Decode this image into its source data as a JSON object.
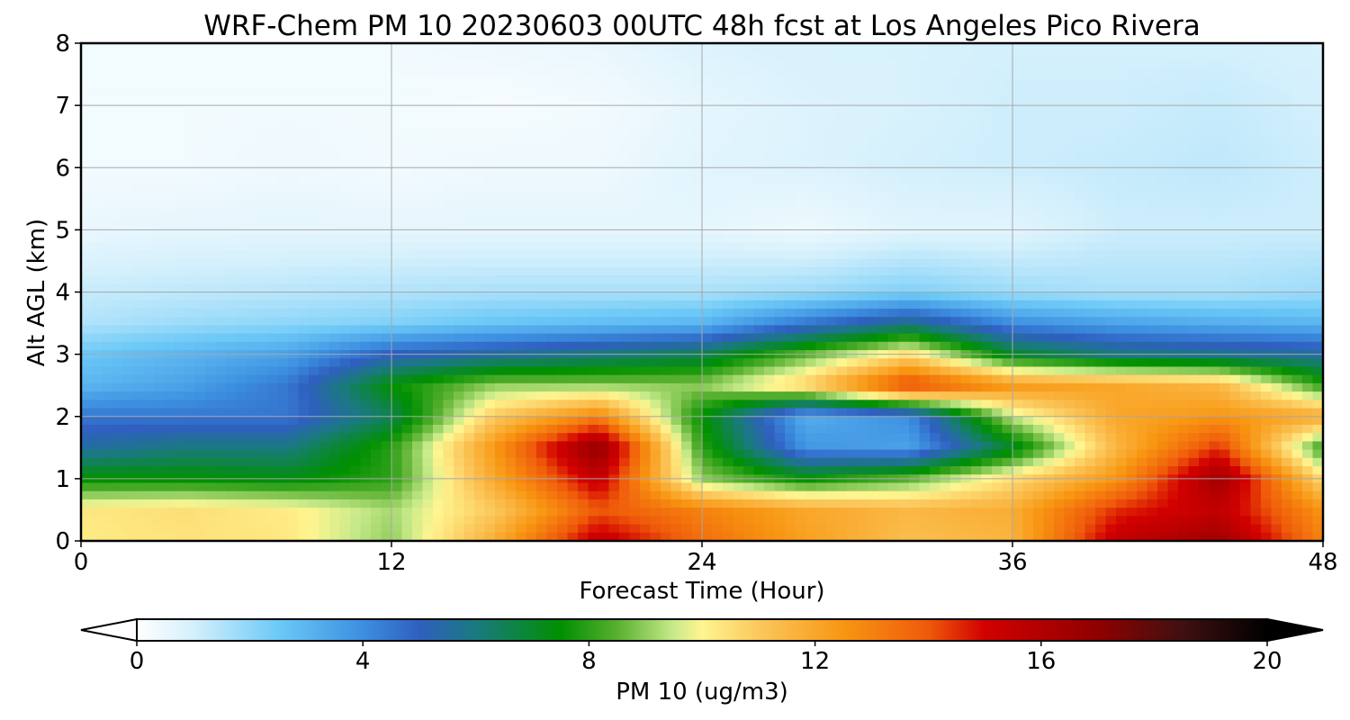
{
  "chart_data": {
    "type": "heatmap",
    "title": "WRF-Chem PM 10  20230603 00UTC 48h fcst at Los Angeles Pico Rivera",
    "xlabel": "Forecast Time (Hour)",
    "ylabel": "Alt AGL (km)",
    "xlim": [
      0,
      48
    ],
    "ylim": [
      0,
      8
    ],
    "x_ticks": [
      0,
      12,
      24,
      36,
      48
    ],
    "y_ticks": [
      0,
      1,
      2,
      3,
      4,
      5,
      6,
      7,
      8
    ],
    "x_tick_labels": [
      "0",
      "12",
      "24",
      "36",
      "48"
    ],
    "y_tick_labels": [
      "0",
      "1",
      "2",
      "3",
      "4",
      "5",
      "6",
      "7",
      "8"
    ],
    "grid": true,
    "colorbar": {
      "label": "PM 10  (ug/m3)",
      "range": [
        0,
        20
      ],
      "ticks": [
        0,
        4,
        8,
        12,
        16,
        20
      ],
      "tick_labels": [
        "0",
        "4",
        "8",
        "12",
        "16",
        "20"
      ],
      "extend": "both",
      "stops": [
        {
          "v": 0,
          "c": "#ffffff"
        },
        {
          "v": 1,
          "c": "#d4f0fc"
        },
        {
          "v": 2.5,
          "c": "#6cc9f7"
        },
        {
          "v": 4,
          "c": "#3c8fe0"
        },
        {
          "v": 5,
          "c": "#2f5fc0"
        },
        {
          "v": 6,
          "c": "#1a7a80"
        },
        {
          "v": 7.5,
          "c": "#009000"
        },
        {
          "v": 8.5,
          "c": "#58b030"
        },
        {
          "v": 9.5,
          "c": "#c8ea8a"
        },
        {
          "v": 10,
          "c": "#fff590"
        },
        {
          "v": 11,
          "c": "#fbc85c"
        },
        {
          "v": 12.5,
          "c": "#f89612"
        },
        {
          "v": 14,
          "c": "#ef5a0a"
        },
        {
          "v": 15,
          "c": "#d20000"
        },
        {
          "v": 17,
          "c": "#900000"
        },
        {
          "v": 18.5,
          "c": "#401010"
        },
        {
          "v": 20,
          "c": "#000000"
        }
      ]
    },
    "grid_x": [
      0,
      4,
      8,
      12,
      16,
      20,
      24,
      28,
      32,
      36,
      40,
      44,
      48
    ],
    "grid_y": [
      0,
      0.5,
      1,
      1.5,
      2,
      2.5,
      3,
      3.5,
      4,
      5,
      6,
      7,
      8
    ],
    "values": [
      [
        10.2,
        10.4,
        10.3,
        9.0,
        11.8,
        15.5,
        13.5,
        12.2,
        11.3,
        11.6,
        15.5,
        16.5,
        13.0
      ],
      [
        10.3,
        10.5,
        10.2,
        9.2,
        11.0,
        14.0,
        13.0,
        12.0,
        11.5,
        11.8,
        14.5,
        15.5,
        12.5
      ],
      [
        7.5,
        7.5,
        7.3,
        8.0,
        12.0,
        15.5,
        9.0,
        7.5,
        8.5,
        10.5,
        12.5,
        16.5,
        10.5
      ],
      [
        5.5,
        6.0,
        6.0,
        8.0,
        12.5,
        17.0,
        8.0,
        3.8,
        3.5,
        7.0,
        11.5,
        14.5,
        8.0
      ],
      [
        4.5,
        4.5,
        4.5,
        6.5,
        11.0,
        13.0,
        7.5,
        3.2,
        4.0,
        9.5,
        12.0,
        12.5,
        12.0
      ],
      [
        3.0,
        3.5,
        4.5,
        7.5,
        9.0,
        9.0,
        9.0,
        11.0,
        14.5,
        12.5,
        12.0,
        11.5,
        8.0
      ],
      [
        2.5,
        3.0,
        3.5,
        5.0,
        5.5,
        6.0,
        6.5,
        8.5,
        10.5,
        7.0,
        6.0,
        5.8,
        5.5
      ],
      [
        1.5,
        1.8,
        2.0,
        2.2,
        2.6,
        2.8,
        3.0,
        4.5,
        5.8,
        4.0,
        3.5,
        3.2,
        3.0
      ],
      [
        1.2,
        1.3,
        1.4,
        1.5,
        1.6,
        1.6,
        1.6,
        1.8,
        2.2,
        1.8,
        1.6,
        1.6,
        1.8
      ],
      [
        0.5,
        0.6,
        0.6,
        0.6,
        0.6,
        0.6,
        0.6,
        0.4,
        0.7,
        0.7,
        1.1,
        1.1,
        1.1
      ],
      [
        0.3,
        0.3,
        0.4,
        0.3,
        0.4,
        0.4,
        0.7,
        0.8,
        1.0,
        1.1,
        1.2,
        1.3,
        1.1
      ],
      [
        0.3,
        0.3,
        0.3,
        0.3,
        0.2,
        0.3,
        0.6,
        0.8,
        0.9,
        1.1,
        1.1,
        1.2,
        1.0
      ],
      [
        0.3,
        0.3,
        0.3,
        0.3,
        0.4,
        0.5,
        0.8,
        0.9,
        0.9,
        1.0,
        1.0,
        1.0,
        0.9
      ]
    ]
  }
}
